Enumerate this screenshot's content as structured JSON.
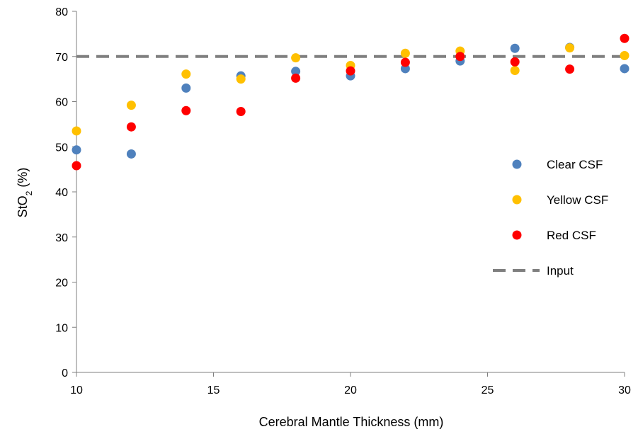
{
  "chart_data": {
    "type": "scatter",
    "xlabel": "Cerebral Mantle Thickness (mm)",
    "ylabel": {
      "main": "StO",
      "sub": "2",
      "suffix": " (%)"
    },
    "xlim": [
      10,
      30
    ],
    "ylim": [
      0,
      80
    ],
    "x_ticks": [
      "10",
      "15",
      "20",
      "25",
      "30"
    ],
    "y_ticks": [
      "0",
      "10",
      "20",
      "30",
      "40",
      "50",
      "60",
      "70",
      "80"
    ],
    "grid": false,
    "legend_position": "right",
    "series": [
      {
        "name": "Clear CSF",
        "color": "#4F81BD",
        "marker": "circle",
        "x": [
          10,
          12,
          14,
          16,
          18,
          20,
          22,
          24,
          26,
          28,
          30
        ],
        "y": [
          49.3,
          48.4,
          63.0,
          65.7,
          66.7,
          65.7,
          67.3,
          69.0,
          71.8,
          72.0,
          67.3
        ]
      },
      {
        "name": "Yellow CSF",
        "color": "#FFC000",
        "marker": "circle",
        "x": [
          10,
          12,
          14,
          16,
          18,
          20,
          22,
          24,
          26,
          28,
          30
        ],
        "y": [
          53.5,
          59.2,
          66.1,
          65.0,
          69.7,
          68.0,
          70.7,
          71.2,
          66.9,
          71.9,
          70.2
        ]
      },
      {
        "name": "Red CSF",
        "color": "#FF0000",
        "marker": "circle",
        "x": [
          10,
          12,
          14,
          16,
          18,
          20,
          22,
          24,
          26,
          28,
          30
        ],
        "y": [
          45.8,
          54.4,
          58.0,
          57.8,
          65.2,
          66.8,
          68.7,
          70.0,
          68.8,
          67.2,
          74.0
        ]
      },
      {
        "name": "Input",
        "color": "#7F7F7F",
        "marker": "dashed-line",
        "x": [
          10,
          30
        ],
        "y": [
          70,
          70
        ]
      }
    ]
  }
}
